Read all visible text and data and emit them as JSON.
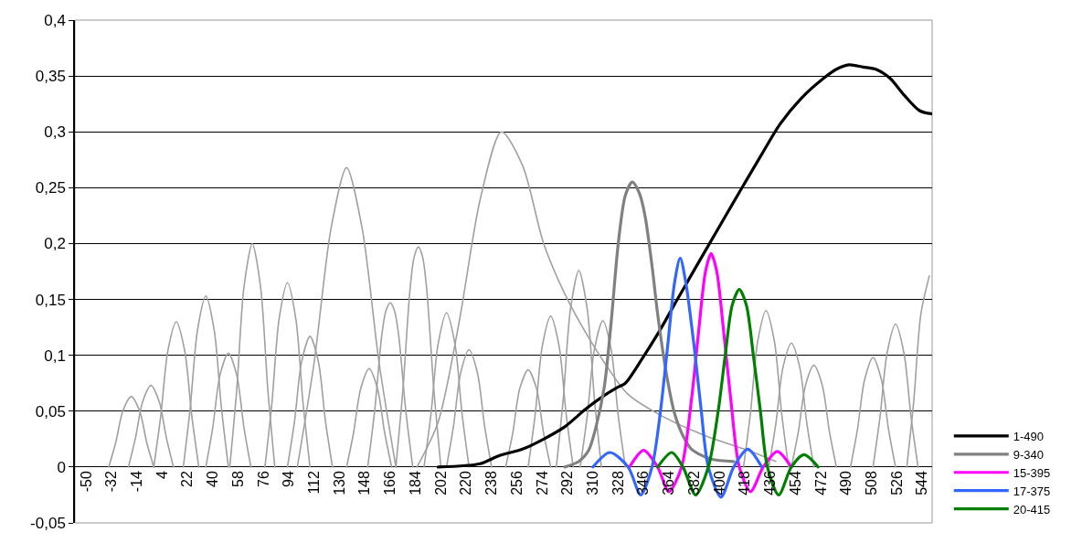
{
  "chart_data": {
    "type": "line",
    "xlim": [
      -58,
      551
    ],
    "xticks": [
      -50,
      -32,
      -14,
      4,
      22,
      40,
      58,
      76,
      94,
      112,
      130,
      148,
      166,
      184,
      202,
      220,
      238,
      256,
      274,
      292,
      310,
      328,
      346,
      364,
      382,
      400,
      418,
      436,
      454,
      472,
      490,
      508,
      526,
      544
    ],
    "ylim": [
      -0.05,
      0.4
    ],
    "yticks": [
      {
        "value": -0.05,
        "label": "-0,05"
      },
      0,
      {
        "value": 0.05,
        "label": "0,05"
      },
      {
        "value": 0.1,
        "label": "0,1"
      },
      {
        "value": 0.15,
        "label": "0,15"
      },
      {
        "value": 0.2,
        "label": "0,2"
      },
      {
        "value": 0.25,
        "label": "0,25"
      },
      {
        "value": 0.3,
        "label": "0,3"
      },
      {
        "value": 0.35,
        "label": "0,35"
      },
      {
        "value": 0.4,
        "label": "0,4"
      }
    ],
    "grid": "y",
    "legend": "right",
    "series": [
      {
        "name": "1-490",
        "color": "#000000",
        "x": [
          200,
          230,
          243,
          260,
          275,
          290,
          305,
          318,
          327,
          333,
          345,
          356,
          370,
          380,
          391,
          403,
          415,
          430,
          443,
          458,
          474,
          483,
          492,
          502,
          511,
          521,
          531,
          542,
          551
        ],
        "values": [
          0,
          0.003,
          0.01,
          0.016,
          0.025,
          0.036,
          0.052,
          0.064,
          0.071,
          0.075,
          0.097,
          0.119,
          0.15,
          0.172,
          0.196,
          0.222,
          0.248,
          0.28,
          0.307,
          0.33,
          0.348,
          0.356,
          0.36,
          0.358,
          0.356,
          0.348,
          0.333,
          0.319,
          0.316
        ]
      },
      {
        "name": "9-340",
        "color": "#808080",
        "x": [
          290,
          300,
          307,
          312,
          318,
          323,
          328,
          333,
          338,
          343,
          347,
          352,
          356,
          362,
          368,
          374,
          380,
          394,
          410
        ],
        "values": [
          0,
          0.005,
          0.015,
          0.035,
          0.071,
          0.13,
          0.2,
          0.243,
          0.255,
          0.245,
          0.225,
          0.18,
          0.137,
          0.085,
          0.048,
          0.028,
          0.016,
          0.007,
          0.005
        ]
      },
      {
        "name": "15-395",
        "color": "#ff00ff",
        "x": [
          336,
          346,
          356,
          364,
          373,
          380,
          385,
          390,
          394,
          398,
          403,
          408,
          414,
          422,
          431,
          441,
          451
        ],
        "values": [
          0,
          0.015,
          0,
          -0.022,
          0,
          0.06,
          0.12,
          0.175,
          0.191,
          0.175,
          0.12,
          0.06,
          0,
          -0.022,
          0,
          0.014,
          0
        ]
      },
      {
        "name": "17-375",
        "color": "#3366ff",
        "x": [
          310,
          322,
          335,
          344,
          352,
          358,
          363,
          368,
          372,
          376,
          382,
          387,
          392,
          401,
          410,
          420,
          430
        ],
        "values": [
          0,
          0.013,
          0,
          -0.025,
          0,
          0.05,
          0.107,
          0.165,
          0.187,
          0.165,
          0.107,
          0.05,
          0,
          -0.027,
          0,
          0.016,
          0
        ]
      },
      {
        "name": "20-415",
        "color": "#008000",
        "x": [
          356,
          366,
          374,
          383,
          392,
          399,
          404,
          409,
          414,
          419,
          424,
          429,
          434,
          442,
          451,
          460,
          470
        ],
        "values": [
          0,
          0.013,
          0,
          -0.025,
          0,
          0.05,
          0.1,
          0.145,
          0.159,
          0.145,
          0.1,
          0.05,
          0,
          -0.025,
          0,
          0.011,
          0
        ]
      },
      {
        "color": "#a0a0a0",
        "x": [
          -34,
          -29,
          -24,
          -18,
          -12,
          -7,
          -2
        ],
        "values": [
          0,
          0.022,
          0.05,
          0.063,
          0.05,
          0.022,
          0
        ]
      },
      {
        "color": "#a0a0a0",
        "x": [
          -20,
          -15,
          -10,
          -4,
          2,
          7,
          12
        ],
        "values": [
          0,
          0.026,
          0.058,
          0.073,
          0.058,
          0.026,
          0
        ]
      },
      {
        "color": "#a0a0a0",
        "x": [
          -2,
          3,
          8,
          14,
          20,
          25,
          30
        ],
        "values": [
          0,
          0.046,
          0.104,
          0.13,
          0.104,
          0.046,
          0
        ]
      },
      {
        "color": "#a0a0a0",
        "x": [
          19,
          24,
          29,
          35,
          41,
          46,
          51
        ],
        "values": [
          0,
          0.054,
          0.122,
          0.153,
          0.122,
          0.054,
          0
        ]
      },
      {
        "color": "#a0a0a0",
        "x": [
          35,
          40,
          45,
          51,
          57,
          62,
          67
        ],
        "values": [
          0,
          0.036,
          0.082,
          0.102,
          0.082,
          0.036,
          0
        ]
      },
      {
        "color": "#a0a0a0",
        "x": [
          52,
          57,
          62,
          68,
          74,
          79,
          84
        ],
        "values": [
          0,
          0.07,
          0.16,
          0.2,
          0.16,
          0.07,
          0
        ]
      },
      {
        "color": "#a0a0a0",
        "x": [
          77,
          82,
          87,
          93,
          99,
          104,
          109
        ],
        "values": [
          0,
          0.058,
          0.132,
          0.165,
          0.132,
          0.058,
          0
        ]
      },
      {
        "color": "#a0a0a0",
        "x": [
          93,
          98,
          103,
          109,
          115,
          120,
          125
        ],
        "values": [
          0,
          0.041,
          0.094,
          0.117,
          0.094,
          0.041,
          0
        ]
      },
      {
        "color": "#a0a0a0",
        "x": [
          100,
          112,
          124,
          135,
          146,
          158,
          170
        ],
        "values": [
          0,
          0.094,
          0.214,
          0.268,
          0.214,
          0.094,
          0
        ]
      },
      {
        "color": "#a0a0a0",
        "x": [
          135,
          140,
          145,
          151,
          157,
          162,
          167
        ],
        "values": [
          0,
          0.031,
          0.07,
          0.088,
          0.07,
          0.031,
          0
        ]
      },
      {
        "color": "#a0a0a0",
        "x": [
          150,
          155,
          160,
          163,
          166,
          169,
          172,
          177,
          182
        ],
        "values": [
          0,
          0.051,
          0.118,
          0.14,
          0.147,
          0.14,
          0.118,
          0.051,
          0
        ]
      },
      {
        "color": "#a0a0a0",
        "x": [
          170,
          175,
          180,
          183,
          186,
          189,
          192,
          197,
          202
        ],
        "values": [
          0,
          0.069,
          0.158,
          0.188,
          0.197,
          0.188,
          0.158,
          0.069,
          0
        ]
      },
      {
        "color": "#a0a0a0",
        "x": [
          190,
          195,
          200,
          206,
          212,
          217,
          222
        ],
        "values": [
          0,
          0.048,
          0.11,
          0.138,
          0.11,
          0.048,
          0
        ]
      },
      {
        "color": "#a0a0a0",
        "x": [
          206,
          211,
          216,
          222,
          228,
          233,
          238
        ],
        "values": [
          0,
          0.037,
          0.084,
          0.105,
          0.084,
          0.037,
          0
        ]
      },
      {
        "color": "#a0a0a0",
        "x": [
          185,
          200,
          215,
          230,
          245,
          260,
          275,
          290,
          305,
          320,
          335,
          360,
          390,
          420,
          440
        ],
        "values": [
          0,
          0.04,
          0.13,
          0.24,
          0.3,
          0.27,
          0.2,
          0.155,
          0.12,
          0.09,
          0.065,
          0.045,
          0.028,
          0.015,
          0.005
        ]
      },
      {
        "color": "#a0a0a0",
        "x": [
          248,
          253,
          258,
          264,
          270,
          275,
          280
        ],
        "values": [
          0,
          0.03,
          0.07,
          0.087,
          0.07,
          0.03,
          0
        ]
      },
      {
        "color": "#a0a0a0",
        "x": [
          264,
          269,
          274,
          280,
          286,
          291,
          296
        ],
        "values": [
          0,
          0.047,
          0.108,
          0.135,
          0.108,
          0.047,
          0
        ]
      },
      {
        "color": "#a0a0a0",
        "x": [
          284,
          289,
          294,
          300,
          306,
          311,
          316
        ],
        "values": [
          0,
          0.062,
          0.141,
          0.176,
          0.141,
          0.062,
          0
        ]
      },
      {
        "color": "#a0a0a0",
        "x": [
          301,
          306,
          311,
          317,
          323,
          328,
          333
        ],
        "values": [
          0,
          0.046,
          0.105,
          0.131,
          0.105,
          0.046,
          0
        ]
      },
      {
        "color": "#a0a0a0",
        "x": [
          417,
          422,
          427,
          433,
          439,
          444,
          449
        ],
        "values": [
          0,
          0.049,
          0.112,
          0.14,
          0.112,
          0.049,
          0
        ]
      },
      {
        "color": "#a0a0a0",
        "x": [
          435,
          440,
          445,
          451,
          457,
          462,
          467
        ],
        "values": [
          0,
          0.039,
          0.089,
          0.111,
          0.089,
          0.039,
          0
        ]
      },
      {
        "color": "#a0a0a0",
        "x": [
          451,
          456,
          461,
          467,
          473,
          478,
          483
        ],
        "values": [
          0,
          0.032,
          0.073,
          0.091,
          0.073,
          0.032,
          0
        ]
      },
      {
        "color": "#a0a0a0",
        "x": [
          493,
          498,
          503,
          509,
          515,
          520,
          525
        ],
        "values": [
          0,
          0.034,
          0.078,
          0.098,
          0.078,
          0.034,
          0
        ]
      },
      {
        "color": "#a0a0a0",
        "x": [
          509,
          514,
          519,
          525,
          531,
          536,
          541
        ],
        "values": [
          0,
          0.045,
          0.102,
          0.128,
          0.102,
          0.045,
          0
        ]
      },
      {
        "color": "#a0a0a0",
        "x": [
          533,
          538,
          543,
          549
        ],
        "values": [
          0,
          0.06,
          0.137,
          0.171
        ]
      }
    ]
  }
}
